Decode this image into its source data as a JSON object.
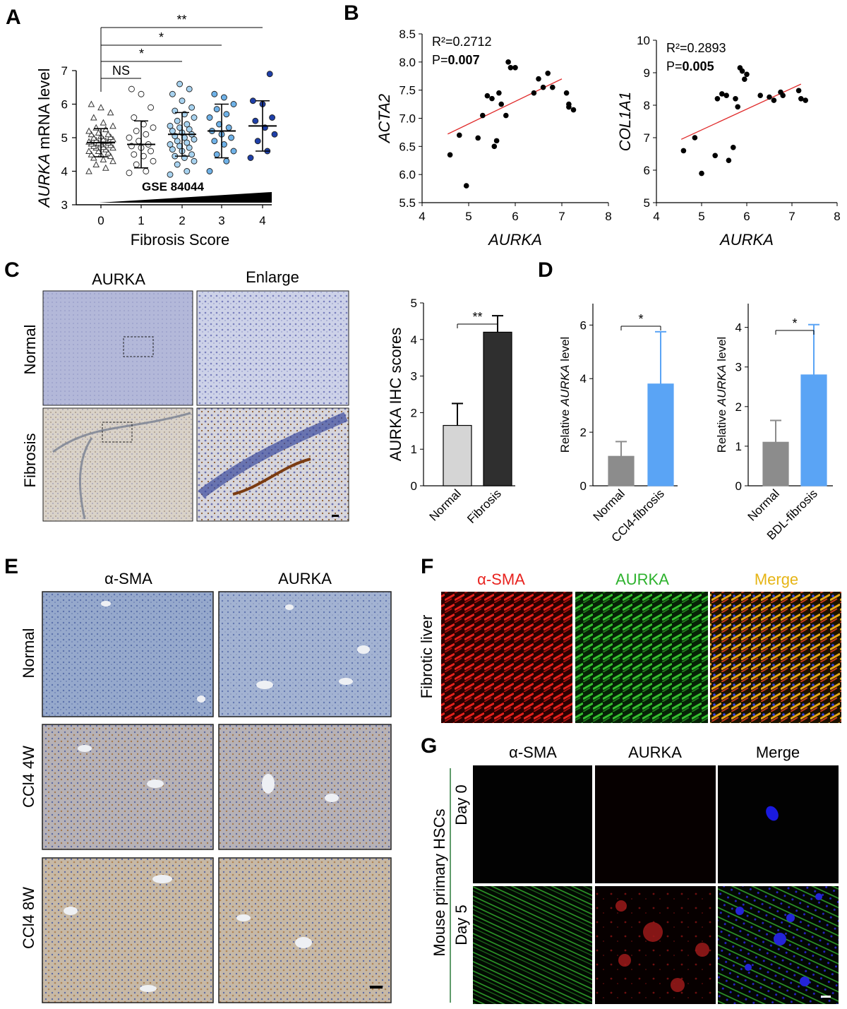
{
  "panel_labels": [
    "A",
    "B",
    "C",
    "D",
    "E",
    "F",
    "G"
  ],
  "panel_c": {
    "col_titles": [
      "AURKA",
      "Enlarge"
    ],
    "row_labels": [
      "Normal",
      "Fibrosis"
    ]
  },
  "panel_e": {
    "col_titles": [
      "α-SMA",
      "AURKA"
    ],
    "row_labels": [
      "Normal",
      "CCl4 4W",
      "CCl4 8W"
    ]
  },
  "panel_f": {
    "col_titles": [
      "α-SMA",
      "AURKA",
      "Merge"
    ],
    "row_label": "Fibrotic liver",
    "colors": [
      "#e8231f",
      "#2db22d",
      "#e6b414"
    ]
  },
  "panel_g": {
    "col_titles": [
      "α-SMA",
      "AURKA",
      "Merge"
    ],
    "side_label": "Mouse primary HSCs",
    "row_labels": [
      "Day 0",
      "Day 5"
    ]
  },
  "colors": {
    "light_blue": "#5aa4f5",
    "grey_bar": "#8c8c8c",
    "light_bar": "#d5d5d5",
    "dark_bar": "#2f2f2f",
    "fit_line": "#e02b2b"
  },
  "chart_data": [
    {
      "panel": "A",
      "type": "scatter",
      "ylabel_gene": "AURKA",
      "ylabel_rest": " mRNA level",
      "xlabel": "Fibrosis Score",
      "dataset_label": "GSE 84044",
      "categories": [
        "0",
        "1",
        "2",
        "3",
        "4"
      ],
      "ylim": [
        3,
        7
      ],
      "yticks": [
        "3",
        "4",
        "5",
        "6",
        "7"
      ],
      "groups": [
        {
          "score": "0",
          "mean": 4.85,
          "sd": 0.42,
          "values": [
            4.0,
            4.1,
            4.2,
            4.3,
            4.35,
            4.4,
            4.45,
            4.5,
            4.5,
            4.55,
            4.6,
            4.6,
            4.65,
            4.7,
            4.7,
            4.72,
            4.75,
            4.78,
            4.8,
            4.82,
            4.85,
            4.85,
            4.88,
            4.9,
            4.92,
            4.95,
            4.95,
            5.0,
            5.02,
            5.05,
            5.1,
            5.1,
            5.15,
            5.2,
            5.25,
            5.3,
            5.35,
            5.45,
            5.6,
            5.75,
            5.9,
            6.0
          ]
        },
        {
          "score": "1",
          "mean": 4.8,
          "sd": 0.7,
          "values": [
            3.95,
            4.0,
            4.2,
            4.3,
            4.45,
            4.5,
            4.6,
            4.7,
            4.75,
            4.8,
            4.9,
            5.0,
            5.1,
            5.2,
            5.3,
            5.4,
            5.6,
            5.9,
            6.3,
            6.45
          ]
        },
        {
          "score": "2",
          "mean": 5.1,
          "sd": 0.65,
          "values": [
            3.9,
            4.0,
            4.2,
            4.3,
            4.4,
            4.45,
            4.5,
            4.6,
            4.65,
            4.7,
            4.75,
            4.8,
            4.85,
            4.9,
            4.95,
            5.0,
            5.05,
            5.1,
            5.15,
            5.2,
            5.25,
            5.3,
            5.35,
            5.4,
            5.5,
            5.6,
            5.7,
            5.8,
            5.9,
            6.1,
            6.3,
            6.45,
            6.6
          ]
        },
        {
          "score": "3",
          "mean": 5.2,
          "sd": 0.8,
          "values": [
            4.0,
            4.3,
            4.5,
            4.6,
            4.8,
            4.9,
            5.0,
            5.1,
            5.2,
            5.3,
            5.4,
            5.6,
            5.7,
            5.85,
            6.0,
            6.2,
            6.3
          ]
        },
        {
          "score": "4",
          "mean": 5.35,
          "sd": 0.75,
          "values": [
            4.4,
            4.6,
            4.9,
            5.1,
            5.3,
            5.5,
            5.6,
            6.0,
            6.1,
            6.9
          ]
        }
      ],
      "comparisons": [
        {
          "from": "0",
          "to": "1",
          "label": "NS"
        },
        {
          "from": "0",
          "to": "2",
          "label": "*"
        },
        {
          "from": "0",
          "to": "3",
          "label": "*"
        },
        {
          "from": "0",
          "to": "4",
          "label": "**"
        }
      ]
    },
    {
      "panel": "B1",
      "type": "scatter",
      "xlabel": "AURKA",
      "ylabel": "ACTA2",
      "xlim": [
        4,
        8
      ],
      "ylim": [
        5.5,
        8.5
      ],
      "xticks": [
        "4",
        "5",
        "6",
        "7",
        "8"
      ],
      "yticks": [
        "5.5",
        "6.0",
        "6.5",
        "7.0",
        "7.5",
        "8.0",
        "8.5"
      ],
      "r2_label": "R²=0.2712",
      "p_prefix": "P=",
      "p_value": "0.007",
      "fit": {
        "x": [
          4.55,
          7.0
        ],
        "y": [
          6.72,
          7.7
        ]
      },
      "x": [
        4.6,
        4.8,
        4.95,
        5.2,
        5.3,
        5.4,
        5.5,
        5.55,
        5.6,
        5.65,
        5.7,
        5.8,
        5.85,
        5.9,
        6.0,
        6.4,
        6.5,
        6.6,
        6.7,
        6.8,
        7.1,
        7.15,
        7.15,
        7.25
      ],
      "y": [
        6.35,
        6.7,
        5.8,
        6.65,
        7.05,
        7.4,
        7.35,
        6.5,
        6.6,
        7.45,
        7.25,
        7.05,
        8.0,
        7.9,
        7.9,
        7.45,
        7.7,
        7.55,
        7.8,
        7.55,
        7.45,
        7.25,
        7.2,
        7.15
      ]
    },
    {
      "panel": "B2",
      "type": "scatter",
      "xlabel": "AURKA",
      "ylabel": "COL1A1",
      "xlim": [
        4,
        8
      ],
      "ylim": [
        5,
        10
      ],
      "xticks": [
        "4",
        "5",
        "6",
        "7",
        "8"
      ],
      "yticks": [
        "5",
        "6",
        "7",
        "8",
        "9",
        "10"
      ],
      "r2_label": "R²=0.2893",
      "p_prefix": "P=",
      "p_value": "0.005",
      "fit": {
        "x": [
          4.55,
          7.2
        ],
        "y": [
          6.95,
          8.65
        ]
      },
      "x": [
        4.6,
        4.85,
        5.0,
        5.3,
        5.35,
        5.45,
        5.55,
        5.6,
        5.7,
        5.75,
        5.8,
        5.85,
        5.9,
        5.95,
        6.0,
        6.3,
        6.5,
        6.6,
        6.75,
        6.8,
        7.15,
        7.2,
        7.3
      ],
      "y": [
        6.6,
        7.0,
        5.9,
        6.45,
        8.2,
        8.35,
        8.3,
        6.3,
        6.7,
        8.2,
        7.95,
        9.15,
        9.05,
        8.8,
        8.95,
        8.3,
        8.25,
        8.15,
        8.4,
        8.3,
        8.45,
        8.2,
        8.15
      ]
    },
    {
      "panel": "C",
      "type": "bar",
      "ylabel": "AURKA IHC scores",
      "categories": [
        "Normal",
        "Fibrosis"
      ],
      "values": [
        1.65,
        4.2
      ],
      "errors": [
        0.6,
        0.45
      ],
      "ylim": [
        0,
        5
      ],
      "yticks": [
        "0",
        "1",
        "2",
        "3",
        "4",
        "5"
      ],
      "sig": "**"
    },
    {
      "panel": "D1",
      "type": "bar",
      "ylabel_pre": "Relative ",
      "ylabel_gene": "AURKA",
      "ylabel_post": " level",
      "categories": [
        "Normal",
        "CCl4-fibrosis"
      ],
      "values": [
        1.1,
        3.8
      ],
      "errors": [
        0.55,
        1.95
      ],
      "ylim": [
        0,
        6.8
      ],
      "yticks": [
        "0",
        "2",
        "4",
        "6"
      ],
      "sig": "*"
    },
    {
      "panel": "D2",
      "type": "bar",
      "ylabel_pre": "Relative ",
      "ylabel_gene": "AURKA",
      "ylabel_post": " level",
      "categories": [
        "Normal",
        "BDL-fibrosis"
      ],
      "values": [
        1.1,
        2.8
      ],
      "errors": [
        0.55,
        1.27
      ],
      "ylim": [
        0,
        4.6
      ],
      "yticks": [
        "0",
        "1",
        "2",
        "3",
        "4"
      ],
      "sig": "*"
    }
  ]
}
